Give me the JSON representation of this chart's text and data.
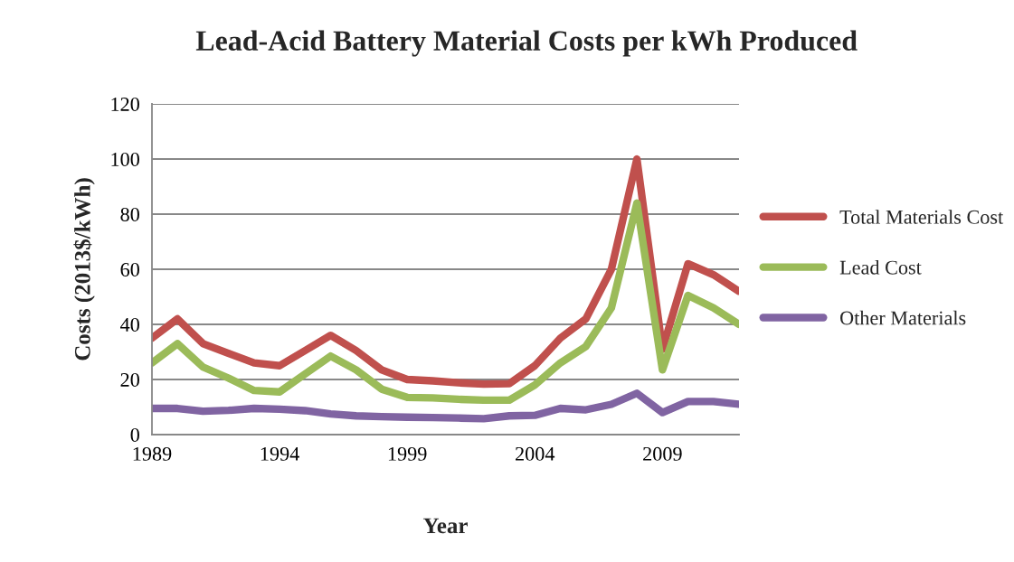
{
  "chart_data": {
    "type": "line",
    "title": "Lead-Acid Battery Material Costs per kWh Produced",
    "xlabel": "Year",
    "ylabel": "Costs (2013$/kWh)",
    "x": [
      1989,
      1990,
      1991,
      1992,
      1993,
      1994,
      1995,
      1996,
      1997,
      1998,
      1999,
      2000,
      2001,
      2002,
      2003,
      2004,
      2005,
      2006,
      2007,
      2008,
      2009,
      2010,
      2011,
      2012
    ],
    "series": [
      {
        "name": "Total Materials Cost",
        "color": "#c0504d",
        "values": [
          35,
          42,
          33,
          29.5,
          26,
          25,
          30.5,
          36,
          30.5,
          23.5,
          20,
          19.5,
          18.8,
          18.3,
          18.5,
          25,
          35,
          42,
          60,
          100,
          31,
          62,
          58,
          52
        ]
      },
      {
        "name": "Lead Cost",
        "color": "#9bbb59",
        "values": [
          26,
          33,
          24.5,
          20.5,
          16,
          15.5,
          22,
          28.5,
          23.5,
          16.5,
          13.5,
          13.3,
          12.8,
          12.5,
          12.5,
          18,
          26,
          32,
          46,
          84,
          23.5,
          50.5,
          46,
          40
        ]
      },
      {
        "name": "Other Materials",
        "color": "#8064a2",
        "values": [
          9.5,
          9.5,
          8.5,
          8.8,
          9.5,
          9.2,
          8.7,
          7.5,
          6.8,
          6.5,
          6.3,
          6.2,
          6.0,
          5.8,
          6.8,
          7,
          9.5,
          9,
          11,
          15,
          8,
          12,
          12,
          11
        ]
      }
    ],
    "xlim": [
      1989,
      2012
    ],
    "xticks": [
      1989,
      1994,
      1999,
      2004,
      2009
    ],
    "ylim": [
      0,
      120
    ],
    "yticks": [
      0,
      20,
      40,
      60,
      80,
      100,
      120
    ],
    "grid": "y",
    "legend": "right",
    "marker": "none",
    "line_style": "solid"
  }
}
